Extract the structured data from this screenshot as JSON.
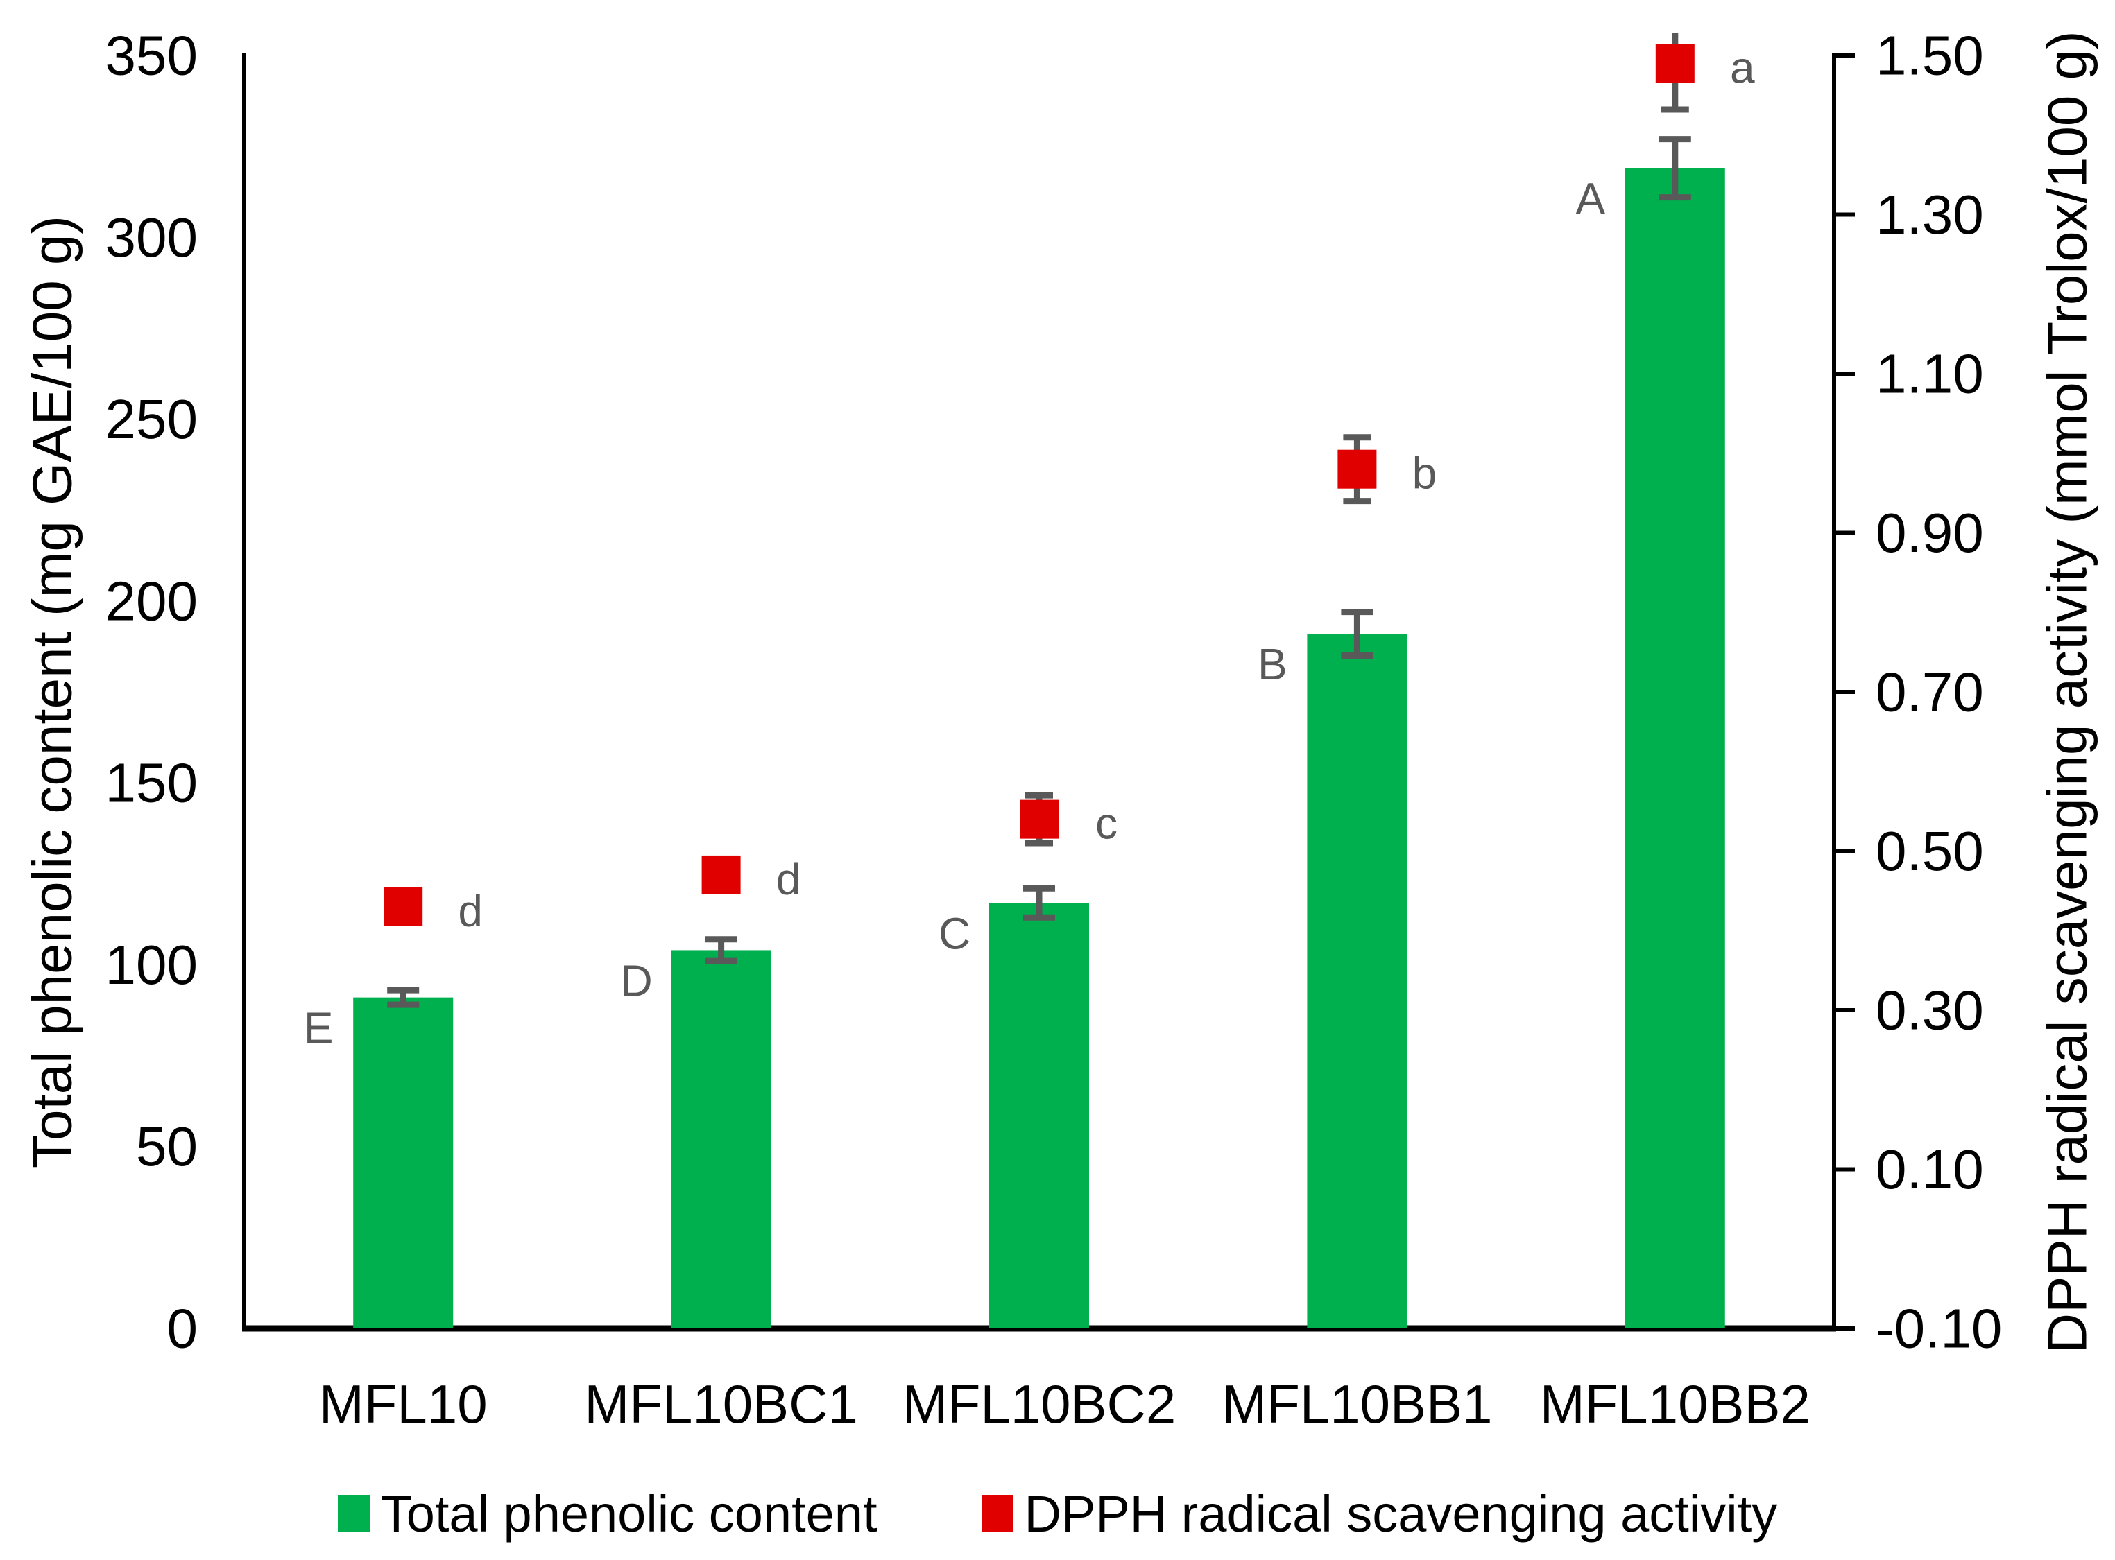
{
  "chart_data": {
    "type": "bar",
    "subtype": "dual-axis combo: bars (left axis) + square scatter markers (right axis)",
    "categories": [
      "MFL10",
      "MFL10BC1",
      "MFL10BC2",
      "MFL10BB1",
      "MFL10BB2"
    ],
    "series": [
      {
        "name": "Total phenolic content",
        "render": "bar",
        "axis": "left",
        "color": "#00b04e",
        "values": [
          91,
          104,
          117,
          191,
          319
        ],
        "errors": [
          2,
          3,
          4,
          6,
          8
        ],
        "sig_letters": [
          "E",
          "D",
          "C",
          "B",
          "A"
        ]
      },
      {
        "name": "DPPH radical scavenging activity",
        "render": "scatter-square",
        "axis": "right",
        "color": "#e00000",
        "values": [
          0.43,
          0.47,
          0.54,
          0.98,
          1.49
        ],
        "errors": [
          0.01,
          0.015,
          0.03,
          0.04,
          0.058
        ],
        "sig_letters": [
          "d",
          "d",
          "c",
          "b",
          "a"
        ]
      }
    ],
    "left_axis": {
      "label": "Total phenolic content (mg GAE/100 g)",
      "min": 0,
      "max": 350,
      "step": 50,
      "tick_values": [
        350,
        300,
        250,
        200,
        150,
        100,
        50,
        0
      ],
      "tick_labels": [
        "350",
        "300",
        "250",
        "200",
        "150",
        "100",
        "50",
        "0"
      ]
    },
    "right_axis": {
      "label": "DPPH radical scavenging activity (mmol Trolox/100 g)",
      "min": -0.1,
      "max": 1.5,
      "step": 0.2,
      "tick_values": [
        1.5,
        1.3,
        1.1,
        0.9,
        0.7,
        0.5,
        0.3,
        0.1,
        -0.1
      ],
      "tick_labels": [
        "1.50",
        "1.30",
        "1.10",
        "0.90",
        "0.70",
        "0.50",
        "0.30",
        "0.10",
        "-0.10"
      ]
    },
    "grid": false,
    "legend_position": "bottom"
  },
  "legend": {
    "items": [
      {
        "label": "Total phenolic content",
        "color": "#00b04e"
      },
      {
        "label": "DPPH radical scavenging activity",
        "color": "#e00000"
      }
    ]
  },
  "colors": {
    "bar_green": "#00b04e",
    "marker_red": "#e00000",
    "error_gray": "#595959",
    "axis_black": "#000000",
    "background": "#ffffff"
  }
}
